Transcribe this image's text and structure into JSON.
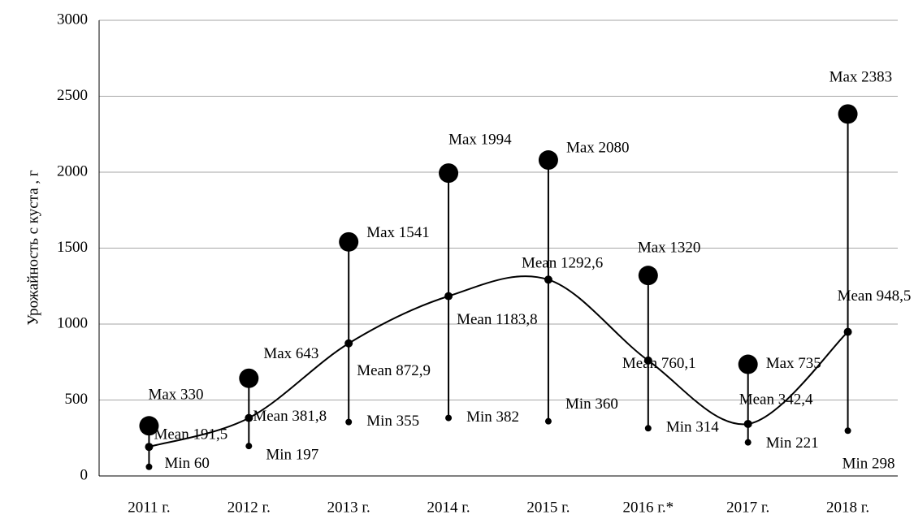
{
  "chart_data": {
    "type": "minmaxmean",
    "y_axis_label": "Урожайность с куста , г",
    "categories": [
      "2011 г.",
      "2012 г.",
      "2013 г.",
      "2014 г.",
      "2015 г.",
      "2016 г.*",
      "2017 г.",
      "2018 г."
    ],
    "series": [
      {
        "name": "Max",
        "color": "#000000",
        "values": [
          330,
          643,
          1541,
          1994,
          2080,
          1320,
          735,
          2383
        ],
        "value_labels": [
          "Max 330",
          "Max 643",
          "Max 1541",
          "Max 1994",
          "Max 2080",
          "Max 1320",
          "Max 735",
          "Max 2383"
        ]
      },
      {
        "name": "Mean",
        "color": "#000000",
        "values": [
          191.5,
          381.8,
          872.9,
          1183.8,
          1292.6,
          760.1,
          342.4,
          948.5
        ],
        "value_labels": [
          "Mean 191,5",
          "Mean 381,8",
          "Mean 872,9",
          "Mean 1183,8",
          "Mean 1292,6",
          "Mean 760,1",
          "Mean 342,4",
          "Mean 948,5"
        ]
      },
      {
        "name": "Min",
        "color": "#000000",
        "values": [
          60,
          197,
          355,
          382,
          360,
          314,
          221,
          298
        ],
        "value_labels": [
          "Min 60",
          "Min 197",
          "Min 355",
          "Min 382",
          "Min 360",
          "Min 314",
          "Min 221",
          "Min 298"
        ]
      }
    ],
    "ylim": [
      0,
      3000
    ],
    "yticks": [
      0,
      500,
      1000,
      1500,
      2000,
      2500,
      3000
    ],
    "grid": true
  }
}
